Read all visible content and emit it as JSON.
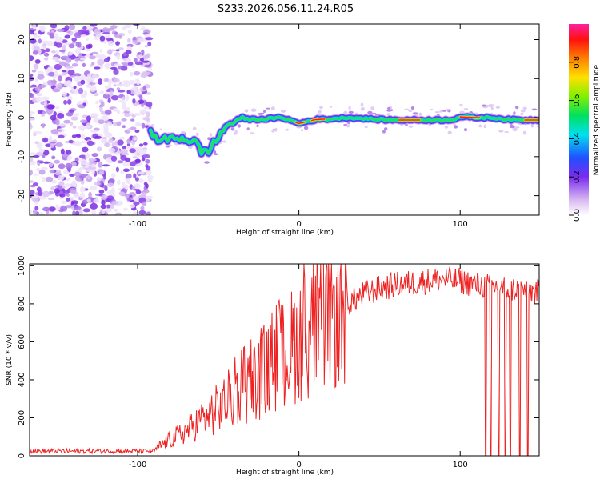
{
  "title": "S233.2026.056.11.24.R05",
  "chart_data": [
    {
      "type": "heatmap",
      "name": "spectrogram",
      "xlabel": "Height of straight line (km)",
      "ylabel": "Frequency (Hz)",
      "xlim": [
        -167,
        149
      ],
      "ylim": [
        -25,
        24
      ],
      "xticks": [
        -100,
        0,
        100
      ],
      "yticks": [
        -20,
        -10,
        0,
        10,
        20
      ],
      "noise_region_x": [
        -167,
        -92
      ],
      "ridge": {
        "x": [
          -92,
          -85,
          -75,
          -65,
          -60,
          -55,
          -50,
          -45,
          -40,
          -35,
          -30,
          -20,
          -10,
          0,
          10,
          20,
          30,
          40,
          50,
          60,
          70,
          80,
          90,
          95,
          100,
          110,
          120,
          130,
          140,
          149
        ],
        "freq": [
          -4,
          -6,
          -5,
          -6,
          -9,
          -8,
          -5,
          -2,
          -1,
          0,
          -0.5,
          -0.3,
          0,
          -1.5,
          -0.5,
          -0.3,
          0,
          -0.2,
          -0.5,
          -0.6,
          -0.6,
          -0.6,
          -0.6,
          -0.5,
          0.2,
          0,
          0,
          -0.5,
          -0.6,
          -0.6
        ]
      },
      "colorbar": {
        "label": "Normalized spectral amplitude",
        "range": [
          0.0,
          1.0
        ],
        "ticks": [
          "0.0",
          "0.2",
          "0.4",
          "0.6",
          "0.8"
        ]
      }
    },
    {
      "type": "line",
      "name": "snr",
      "xlabel": "Height of straight line (km)",
      "ylabel": "SNR (10 * v/v)",
      "xlim": [
        -167,
        149
      ],
      "ylim": [
        0,
        1010
      ],
      "xticks": [
        -100,
        0,
        100
      ],
      "yticks": [
        0,
        200,
        400,
        600,
        800,
        1000
      ],
      "color": "#ee2222",
      "trend": {
        "x": [
          -167,
          -90,
          -85,
          -70,
          -60,
          -50,
          -40,
          -30,
          -20,
          -10,
          0,
          10,
          20,
          30,
          40,
          50,
          60,
          70,
          80,
          90,
          100,
          110,
          120,
          130,
          140,
          149
        ],
        "y": [
          25,
          25,
          60,
          130,
          190,
          250,
          320,
          380,
          440,
          530,
          610,
          680,
          740,
          800,
          850,
          880,
          900,
          910,
          920,
          930,
          920,
          900,
          890,
          880,
          870,
          860
        ]
      },
      "dropouts_x": [
        116,
        119,
        124,
        128,
        131,
        137,
        142
      ]
    }
  ]
}
